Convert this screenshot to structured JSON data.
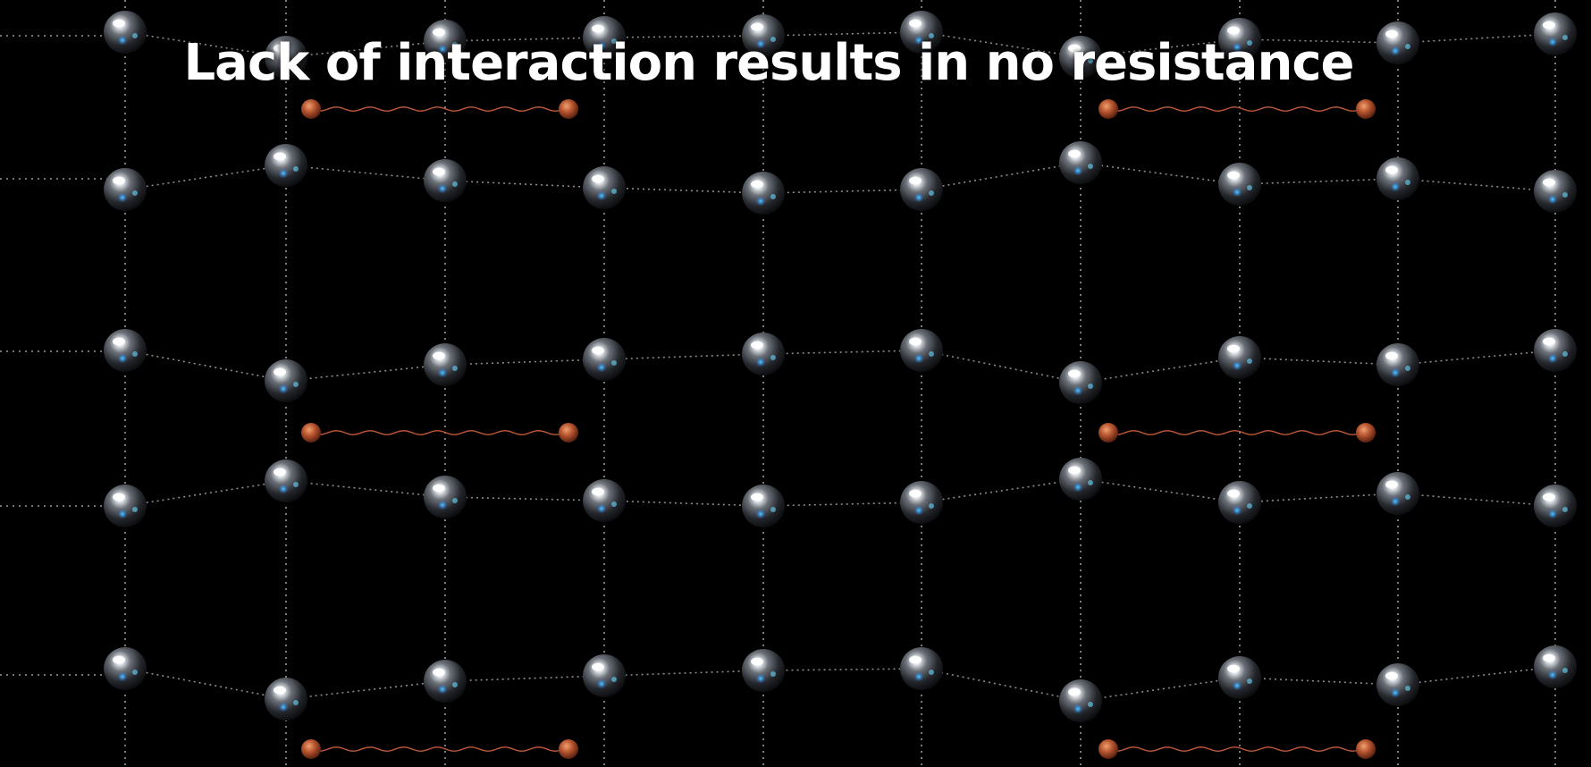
{
  "title": "Lack of interaction results in no resistance",
  "colors": {
    "background": "#000000",
    "title": "#ffffff",
    "ion": "#5a5f66",
    "electron": "#b5532e",
    "phonon_wave": "#c0583a"
  },
  "icons": {
    "lattice_ion": "sphere-icon",
    "electron": "electron-icon",
    "cooper_pair": "cooper-pair-icon"
  }
}
